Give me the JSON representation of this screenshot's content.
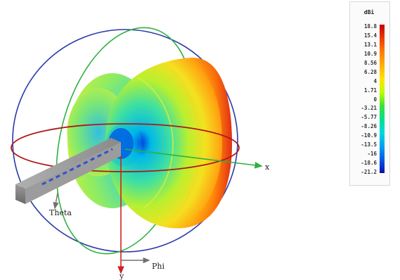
{
  "axes": {
    "x_label": "x",
    "y_label": "y",
    "theta_label": "Theta",
    "phi_label": "Phi"
  },
  "color_scale": {
    "title": "dBi",
    "ticks": [
      "18.8",
      "15.4",
      "13.1",
      "10.9",
      "8.56",
      "6.28",
      "4",
      "1.71",
      "0",
      "-3.21",
      "-5.77",
      "-8.26",
      "-10.9",
      "-13.5",
      "-16",
      "-18.6",
      "-21.2"
    ],
    "colors": {
      "max": "#c40000",
      "mid": "#3ae03a",
      "min": "#0010b0"
    }
  },
  "pattern_colors": {
    "lobe_outer": "#e8302a",
    "lobe_mid": "#ffb000",
    "lobe_inner": "#c8f020",
    "back_lobe": "#60e0c0",
    "throat": "#0030e0"
  },
  "ring_colors": {
    "horizontal": "#b01818",
    "vertical_green": "#30b040",
    "vertical_blue": "#2a3aa8"
  }
}
